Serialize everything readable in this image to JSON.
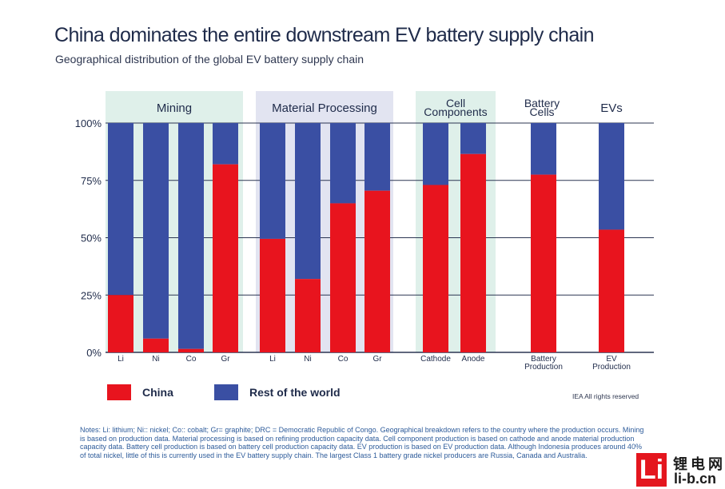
{
  "header": {
    "title": "China dominates the entire downstream EV battery supply chain",
    "subtitle": "Geographical distribution of the global EV battery supply chain"
  },
  "colors": {
    "china": "#e8141e",
    "rest": "#3a4fa3",
    "panel_green": "#dff0ea",
    "panel_lavender": "#e2e4f1",
    "grid": "#2b3552"
  },
  "chart_data": {
    "type": "bar",
    "stacked": true,
    "ylim": [
      0,
      100
    ],
    "yticks": [
      {
        "value": 0,
        "label": "0%"
      },
      {
        "value": 25,
        "label": "25%"
      },
      {
        "value": 50,
        "label": "50%"
      },
      {
        "value": 75,
        "label": "75%"
      },
      {
        "value": 100,
        "label": "100%"
      }
    ],
    "groups": [
      {
        "name": "Mining",
        "lines": [
          "Mining"
        ],
        "panel": "green"
      },
      {
        "name": "Material Processing",
        "lines": [
          "Material Processing"
        ],
        "panel": "lavender"
      },
      {
        "name": "Cell Components",
        "lines": [
          "Cell",
          "Components"
        ],
        "panel": "green"
      },
      {
        "name": "Battery Cells",
        "lines": [
          "Battery",
          "Cells"
        ],
        "panel": "none"
      },
      {
        "name": "EVs",
        "lines": [
          "EVs"
        ],
        "panel": "none"
      }
    ],
    "bars": [
      {
        "group": 0,
        "label": [
          "Li"
        ],
        "china": 25
      },
      {
        "group": 0,
        "label": [
          "Ni"
        ],
        "china": 6
      },
      {
        "group": 0,
        "label": [
          "Co"
        ],
        "china": 1.5
      },
      {
        "group": 0,
        "label": [
          "Gr"
        ],
        "china": 82
      },
      {
        "group": 1,
        "label": [
          "Li"
        ],
        "china": 49.5
      },
      {
        "group": 1,
        "label": [
          "Ni"
        ],
        "china": 32
      },
      {
        "group": 1,
        "label": [
          "Co"
        ],
        "china": 65
      },
      {
        "group": 1,
        "label": [
          "Gr"
        ],
        "china": 70.5
      },
      {
        "group": 2,
        "label": [
          "Cathode"
        ],
        "china": 73
      },
      {
        "group": 2,
        "label": [
          "Anode"
        ],
        "china": 86.5
      },
      {
        "group": 3,
        "label": [
          "Battery",
          "Production"
        ],
        "china": 77.5
      },
      {
        "group": 4,
        "label": [
          "EV",
          "Production"
        ],
        "china": 53.5
      }
    ],
    "series": [
      {
        "name": "China",
        "color": "#e8141e"
      },
      {
        "name": "Rest of the world",
        "color": "#3a4fa3"
      }
    ]
  },
  "legend": {
    "china": "China",
    "rest": "Rest of the world"
  },
  "copyright": "IEA All rights reserved",
  "notes": "Notes: Li: lithium; Ni:: nickel; Co:: cobalt; Gr= graphite; DRC = Democratic Republic of Congo. Geographical breakdown refers to the country where the production occurs. Mining is based on production data. Material processing is based on refining production capacity data. Cell component production is based on cathode and anode material production capacity data. Battery cell production is based on battery cell production capacity data. EV production is based on EV production data. Although Indonesia produces around 40% of total nickel, little of this is currently used in the EV battery supply chain. The largest Class 1 battery grade nickel producers are Russia, Canada and Australia.",
  "watermark": {
    "letter": "Li",
    "chinese": "锂电网",
    "domain": "li-b.cn"
  }
}
